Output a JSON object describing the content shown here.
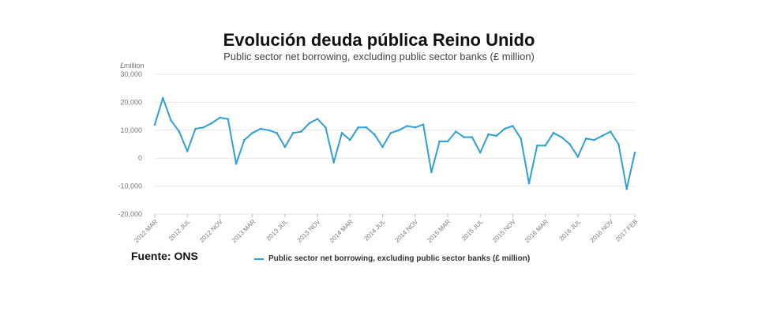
{
  "header": {
    "title": "Evolución deuda pública Reino Unido",
    "subtitle": "Public sector net borrowing, excluding public sector banks (£ million)"
  },
  "source": "Fuente: ONS",
  "colors": {
    "line": "#2f9fd4",
    "grid": "#e6e6e6"
  },
  "chart_data": {
    "type": "line",
    "title": "Evolución deuda pública Reino Unido",
    "subtitle": "Public sector net borrowing, excluding public sector banks (£ million)",
    "unit_label": "£million",
    "ylim": [
      -20000,
      30000
    ],
    "y_ticks": [
      "30,000",
      "20,000",
      "10,000",
      "0",
      "-10,000",
      "-20,000"
    ],
    "y_tick_values": [
      30000,
      20000,
      10000,
      0,
      -10000,
      -20000
    ],
    "x_tick_labels": [
      "2012 MAR",
      "2012 JUL",
      "2012 NOV",
      "2013 MAR",
      "2013 JUL",
      "2013 NOV",
      "2014 MAR",
      "2014 JUL",
      "2014 NOV",
      "2015 MAR",
      "2015 JUL",
      "2015 NOV",
      "2016 MAR",
      "2016 JUL",
      "2016 NOV",
      "2017 FEB"
    ],
    "x_tick_months": [
      "2012-03",
      "2012-07",
      "2012-11",
      "2013-03",
      "2013-07",
      "2013-11",
      "2014-03",
      "2014-07",
      "2014-11",
      "2015-03",
      "2015-07",
      "2015-11",
      "2016-03",
      "2016-07",
      "2016-11",
      "2017-02"
    ],
    "grid": true,
    "legend_position": "bottom",
    "series": [
      {
        "name": "Public sector net borrowing, excluding public sector banks (£ million)",
        "x": [
          "2012-03",
          "2012-04",
          "2012-05",
          "2012-06",
          "2012-07",
          "2012-08",
          "2012-09",
          "2012-10",
          "2012-11",
          "2012-12",
          "2013-01",
          "2013-02",
          "2013-03",
          "2013-04",
          "2013-05",
          "2013-06",
          "2013-07",
          "2013-08",
          "2013-09",
          "2013-10",
          "2013-11",
          "2013-12",
          "2014-01",
          "2014-02",
          "2014-03",
          "2014-04",
          "2014-05",
          "2014-06",
          "2014-07",
          "2014-08",
          "2014-09",
          "2014-10",
          "2014-11",
          "2014-12",
          "2015-01",
          "2015-02",
          "2015-03",
          "2015-04",
          "2015-05",
          "2015-06",
          "2015-07",
          "2015-08",
          "2015-09",
          "2015-10",
          "2015-11",
          "2015-12",
          "2016-01",
          "2016-02",
          "2016-03",
          "2016-04",
          "2016-05",
          "2016-06",
          "2016-07",
          "2016-08",
          "2016-09",
          "2016-10",
          "2016-11",
          "2016-12",
          "2017-01",
          "2017-02"
        ],
        "values": [
          12000,
          21500,
          13500,
          9500,
          2500,
          10500,
          11000,
          12500,
          14500,
          14000,
          -2000,
          6500,
          9000,
          10500,
          10000,
          9000,
          4000,
          9000,
          9500,
          12500,
          14000,
          11000,
          -1500,
          9000,
          6500,
          11000,
          11000,
          8500,
          4000,
          9000,
          10000,
          11500,
          11000,
          12000,
          -5000,
          6000,
          6000,
          9500,
          7500,
          7500,
          2000,
          8500,
          8000,
          10500,
          11500,
          7000,
          -9000,
          4500,
          4500,
          9000,
          7500,
          5000,
          500,
          7000,
          6500,
          8000,
          9500,
          5000,
          -11000,
          2000
        ]
      }
    ]
  }
}
